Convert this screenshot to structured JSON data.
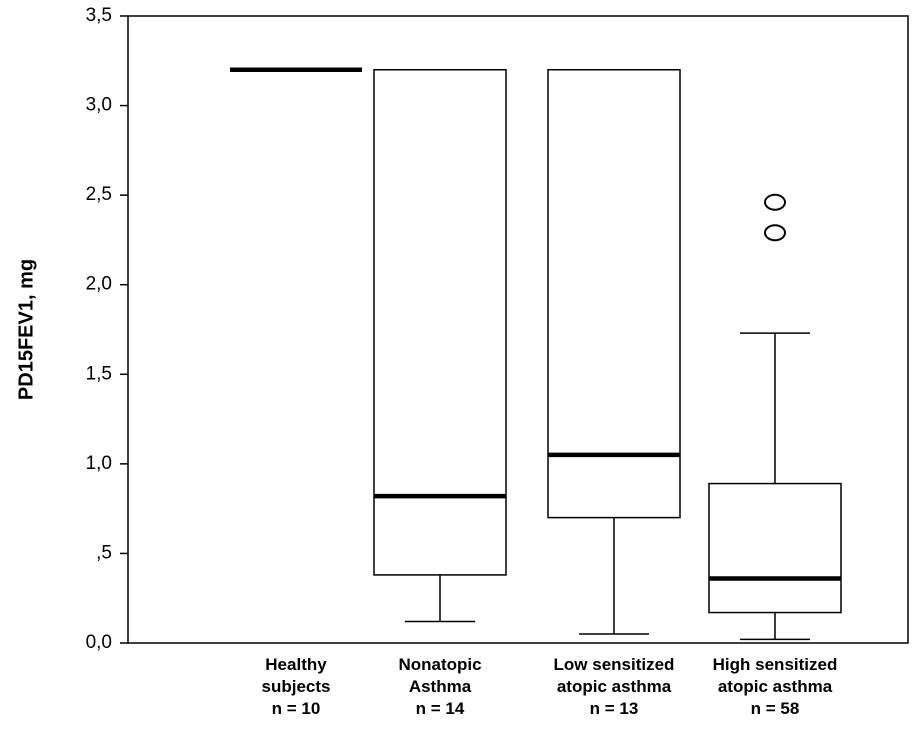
{
  "chart_data": {
    "type": "boxplot",
    "ylabel": "PD15FEV1, mg",
    "ylim": [
      0,
      3.5
    ],
    "yticks": [
      {
        "value": 0.0,
        "label": "0,0"
      },
      {
        "value": 0.5,
        "label": ",5"
      },
      {
        "value": 1.0,
        "label": "1,0"
      },
      {
        "value": 1.5,
        "label": "1,5"
      },
      {
        "value": 2.0,
        "label": "2,0"
      },
      {
        "value": 2.5,
        "label": "2,5"
      },
      {
        "value": 3.0,
        "label": "3,0"
      },
      {
        "value": 3.5,
        "label": "3,5"
      }
    ],
    "groups": [
      {
        "label_lines": [
          "Healthy",
          "subjects",
          "n = 10"
        ],
        "min": 3.2,
        "q1": 3.2,
        "median": 3.2,
        "q3": 3.2,
        "max": 3.2,
        "outliers": []
      },
      {
        "label_lines": [
          "Nonatopic",
          "Asthma",
          "n = 14"
        ],
        "min": 0.12,
        "q1": 0.38,
        "median": 0.82,
        "q3": 3.2,
        "max": 3.2,
        "outliers": []
      },
      {
        "label_lines": [
          "Low sensitized",
          "atopic asthma",
          "n = 13"
        ],
        "min": 0.05,
        "q1": 0.7,
        "median": 1.05,
        "q3": 3.2,
        "max": 3.2,
        "outliers": []
      },
      {
        "label_lines": [
          "High sensitized",
          "atopic asthma",
          "n = 58"
        ],
        "min": 0.02,
        "q1": 0.17,
        "median": 0.36,
        "q3": 0.89,
        "max": 1.73,
        "outliers": [
          2.29,
          2.46
        ]
      }
    ]
  }
}
